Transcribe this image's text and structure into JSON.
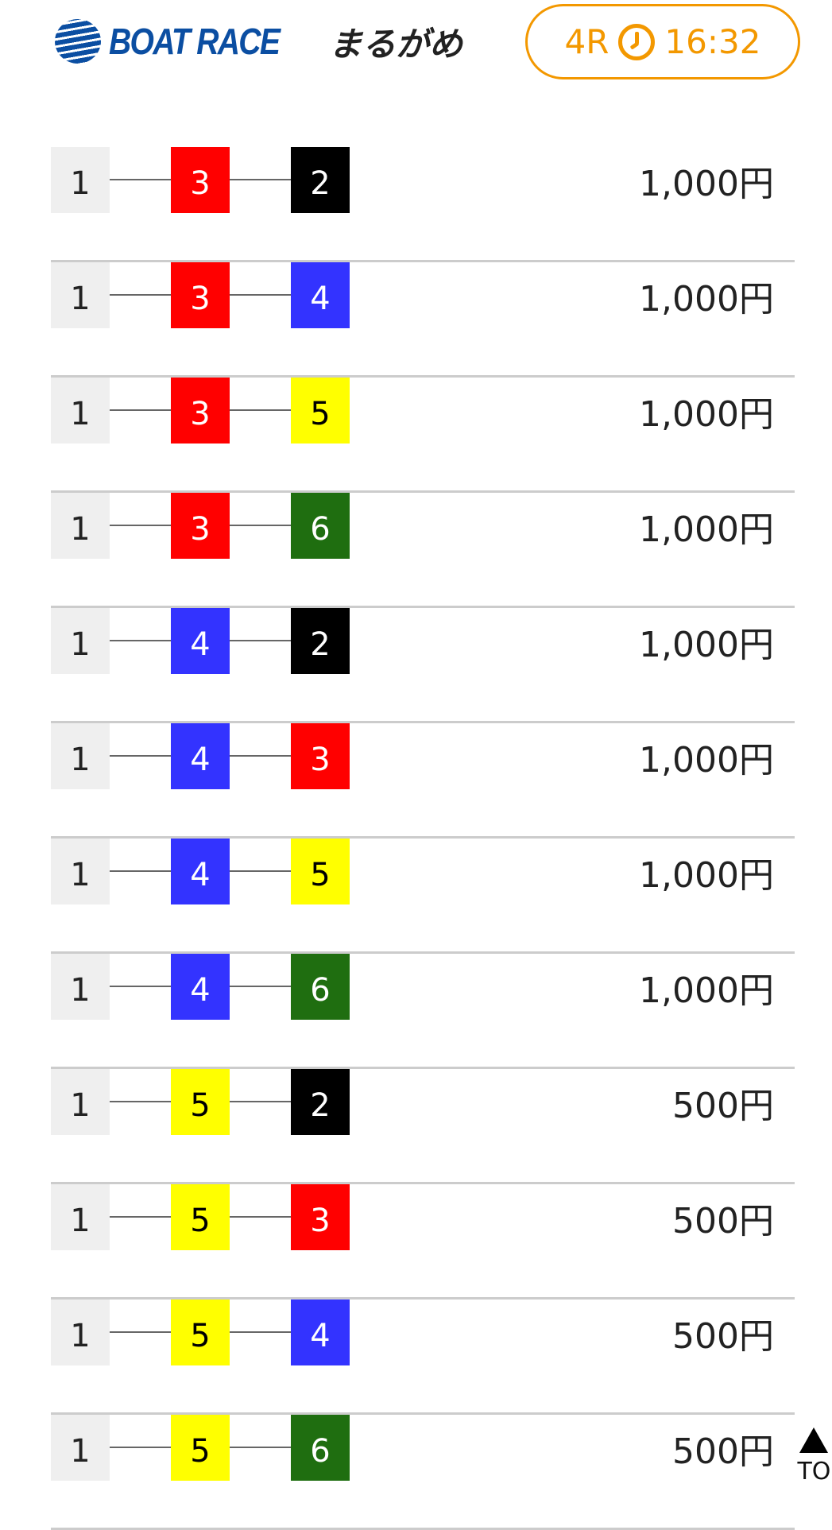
{
  "header": {
    "logo_text": "BOAT RACE",
    "logo_venue": "まるがめ",
    "race": "4R",
    "time": "16:32",
    "clock_icon": "clock-icon"
  },
  "boat_colors": {
    "1": {
      "bg": "#efefef",
      "fg": "#222"
    },
    "2": {
      "bg": "#000000",
      "fg": "#fff"
    },
    "3": {
      "bg": "#ff0000",
      "fg": "#fff"
    },
    "4": {
      "bg": "#3333ff",
      "fg": "#fff"
    },
    "5": {
      "bg": "#ffff00",
      "fg": "#000"
    },
    "6": {
      "bg": "#1f6e10",
      "fg": "#fff"
    }
  },
  "bets": [
    {
      "first": "1",
      "second": "3",
      "third": "2",
      "amount": "1,000円"
    },
    {
      "first": "1",
      "second": "3",
      "third": "4",
      "amount": "1,000円"
    },
    {
      "first": "1",
      "second": "3",
      "third": "5",
      "amount": "1,000円"
    },
    {
      "first": "1",
      "second": "3",
      "third": "6",
      "amount": "1,000円"
    },
    {
      "first": "1",
      "second": "4",
      "third": "2",
      "amount": "1,000円"
    },
    {
      "first": "1",
      "second": "4",
      "third": "3",
      "amount": "1,000円"
    },
    {
      "first": "1",
      "second": "4",
      "third": "5",
      "amount": "1,000円"
    },
    {
      "first": "1",
      "second": "4",
      "third": "6",
      "amount": "1,000円"
    },
    {
      "first": "1",
      "second": "5",
      "third": "2",
      "amount": "500円"
    },
    {
      "first": "1",
      "second": "5",
      "third": "3",
      "amount": "500円"
    },
    {
      "first": "1",
      "second": "5",
      "third": "4",
      "amount": "500円"
    },
    {
      "first": "1",
      "second": "5",
      "third": "6",
      "amount": "500円"
    }
  ],
  "top_button": {
    "label": "TOP"
  }
}
